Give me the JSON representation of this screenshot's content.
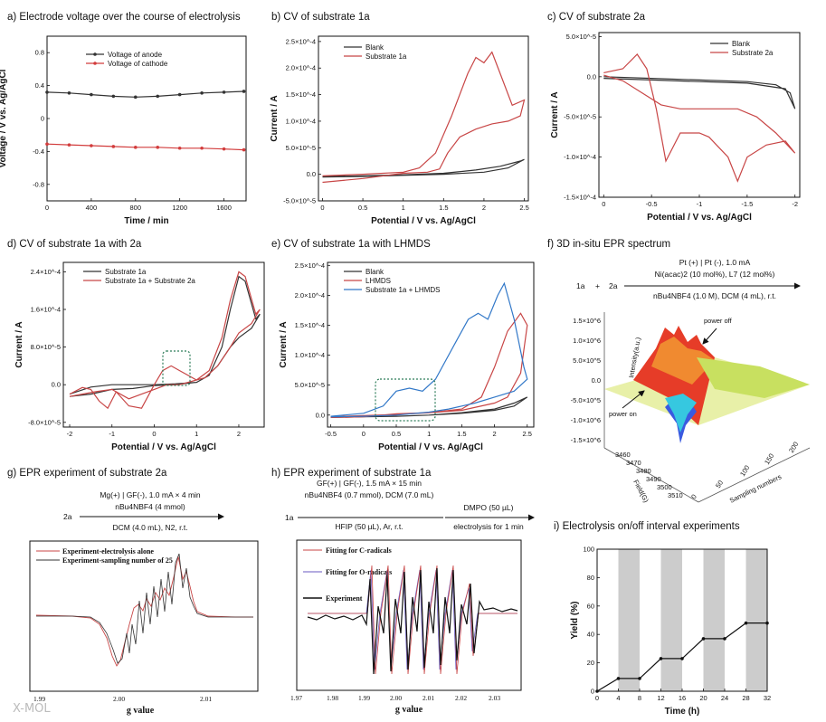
{
  "watermark": "X-MOL",
  "panels": {
    "a": {
      "title": "a) Electrode voltage over the course of electrolysis"
    },
    "b": {
      "title": "b) CV of substrate 1a"
    },
    "c": {
      "title": "c) CV of substrate 2a"
    },
    "d": {
      "title": "d) CV of substrate 1a with 2a"
    },
    "e": {
      "title": "e) CV of substrate 1a with LHMDS"
    },
    "f": {
      "title": "f) 3D in-situ EPR spectrum",
      "reactant1": "1a",
      "plus": "+",
      "reactant2": "2a",
      "cond1": "Pt (+) | Pt (-), 1.0 mA",
      "cond2": "Ni(acac)2 (10 mol%), L7 (12 mol%)",
      "cond3": "nBu4NBF4 (1.0 M), DCM (4 mL), r.t.",
      "zlabel": "Intensity(a.u.)",
      "ylabel": "Field(G)",
      "xlabel": "Sampling numbers",
      "power_off": "power off",
      "power_on": "power on",
      "zticks": [
        "1.5×10^6",
        "1.0×10^6",
        "5.0×10^5",
        "0.0",
        "-5.0×10^5",
        "-1.0×10^6",
        "-1.5×10^6"
      ],
      "fieldticks": [
        "3460",
        "3470",
        "3480",
        "3490",
        "3500",
        "3510"
      ],
      "sampleticks": [
        "0",
        "50",
        "100",
        "150",
        "200"
      ]
    },
    "g": {
      "title": "g) EPR experiment of substrate 2a",
      "reactant": "2a",
      "cond1": "Mg(+) | GF(-), 1.0 mA × 4 min",
      "cond2": "nBu4NBF4 (4 mmol)",
      "cond3": "DCM (4.0 mL), N2, r.t.",
      "legend": [
        "Experiment-electrolysis alone",
        "Experiment-sampling number of 25"
      ],
      "xlabel": "g value",
      "xticks": [
        "1.99",
        "2.00",
        "2.01"
      ]
    },
    "h": {
      "title": "h) EPR experiment of substrate 1a",
      "reactant": "1a",
      "cond1": "GF(+) | GF(-), 1.5 mA × 15 min",
      "cond2": "nBu4NBF4 (0.7 mmol), DCM (7.0 mL)",
      "cond3": "HFIP (50 µL), Ar, r.t.",
      "cond4": "DMPO (50 µL)",
      "cond5": "electrolysis for 1 min",
      "legend": [
        "Fitting for C-radicals",
        "Fitting for O-radicals",
        "Experiment"
      ],
      "xlabel": "g value",
      "xticks": [
        "1.97",
        "1.98",
        "1.99",
        "2.00",
        "2.01",
        "2.02",
        "2.03"
      ]
    },
    "i": {
      "title": "i) Electrolysis on/off interval experiments"
    }
  },
  "chart_data": [
    {
      "panel": "a",
      "type": "line",
      "title": "Electrode voltage over the course of electrolysis",
      "xlabel": "Time / min",
      "ylabel": "Voltage / V vs. Ag/AgCl",
      "xlim": [
        0,
        1800
      ],
      "ylim": [
        -1.0,
        1.0
      ],
      "xticks": [
        0,
        400,
        800,
        1200,
        1600
      ],
      "yticks": [
        -0.8,
        -0.4,
        0.0,
        0.4,
        0.8
      ],
      "series": [
        {
          "name": "Voltage of anode",
          "color": "#333333",
          "x": [
            0,
            200,
            400,
            600,
            800,
            1000,
            1200,
            1400,
            1600,
            1780
          ],
          "y": [
            0.32,
            0.31,
            0.29,
            0.27,
            0.26,
            0.27,
            0.29,
            0.31,
            0.32,
            0.33
          ]
        },
        {
          "name": "Voltage of cathode",
          "color": "#d23c3c",
          "x": [
            0,
            200,
            400,
            600,
            800,
            1000,
            1200,
            1400,
            1600,
            1780
          ],
          "y": [
            -0.31,
            -0.32,
            -0.33,
            -0.34,
            -0.35,
            -0.35,
            -0.36,
            -0.36,
            -0.37,
            -0.38
          ]
        }
      ]
    },
    {
      "panel": "b",
      "type": "line",
      "title": "CV of substrate 1a",
      "xlabel": "Potential / V vs. Ag/AgCl",
      "ylabel": "Current / A",
      "xlim": [
        -0.05,
        2.55
      ],
      "ylim": [
        -5e-05,
        0.00026
      ],
      "xticks": [
        0.0,
        0.5,
        1.0,
        1.5,
        2.0,
        2.5
      ],
      "yticks": [
        -5e-05,
        0.0,
        5e-05,
        0.0001,
        0.00015,
        0.0002,
        0.00025
      ],
      "yticklabels": [
        "-5.0×10^-5",
        "0.0",
        "5.0×10^-5",
        "1.0×10^-4",
        "1.5×10^-4",
        "2.0×10^-4",
        "2.5×10^-4"
      ],
      "series": [
        {
          "name": "Blank",
          "color": "#333333",
          "x": [
            0,
            0.5,
            1.0,
            1.5,
            1.9,
            2.2,
            2.45,
            2.5,
            2.3,
            2.0,
            1.5,
            1.0,
            0.5,
            0
          ],
          "y": [
            -4e-06,
            -3e-06,
            -1e-06,
            2e-06,
            8e-06,
            1.5e-05,
            2.5e-05,
            2.8e-05,
            1.2e-05,
            4e-06,
            0.0,
            -2e-06,
            -4e-06,
            -5e-06
          ]
        },
        {
          "name": "Substrate 1a",
          "color": "#c84646",
          "x": [
            0,
            0.5,
            1.0,
            1.2,
            1.4,
            1.6,
            1.8,
            1.9,
            2.0,
            2.1,
            2.2,
            2.35,
            2.5,
            2.45,
            2.3,
            2.1,
            1.9,
            1.7,
            1.55,
            1.45,
            1.3,
            1.0,
            0.5,
            0
          ],
          "y": [
            -3e-06,
            0.0,
            4e-06,
            1.2e-05,
            4e-05,
            0.00011,
            0.00019,
            0.00022,
            0.00021,
            0.00023,
            0.00019,
            0.00013,
            0.00014,
            0.00011,
            0.0001,
            9.5e-05,
            8.5e-05,
            7e-05,
            4e-05,
            1e-05,
            4e-06,
            2e-06,
            -8e-06,
            -1.5e-05
          ]
        }
      ]
    },
    {
      "panel": "c",
      "type": "line",
      "title": "CV of substrate 2a",
      "xlabel": "Potential / V vs. Ag/AgCl",
      "ylabel": "Current / A",
      "xlim": [
        0.05,
        -2.05
      ],
      "ylim": [
        -0.00015,
        5.5e-05
      ],
      "xticks": [
        0.0,
        -0.5,
        -1.0,
        -1.5,
        -2.0
      ],
      "yticks": [
        -0.00015,
        -0.0001,
        -5e-05,
        0.0,
        5e-05
      ],
      "yticklabels": [
        "-1.5×10^-4",
        "-1.0×10^-4",
        "-5.0×10^-5",
        "0.0",
        "5.0×10^-5"
      ],
      "series": [
        {
          "name": "Blank",
          "color": "#333333",
          "x": [
            0,
            -0.5,
            -1.0,
            -1.5,
            -1.8,
            -1.95,
            -2.0,
            -1.9,
            -1.5,
            -1.0,
            -0.5,
            0
          ],
          "y": [
            0.0,
            -2e-06,
            -4e-06,
            -6e-06,
            -1e-05,
            -2e-05,
            -4e-05,
            -1.5e-05,
            -8e-06,
            -6e-06,
            -4e-06,
            -2e-06
          ]
        },
        {
          "name": "Substrate 2a",
          "color": "#c84646",
          "x": [
            0,
            -0.2,
            -0.35,
            -0.45,
            -0.55,
            -0.65,
            -0.8,
            -1.0,
            -1.1,
            -1.3,
            -1.4,
            -1.5,
            -1.7,
            -1.9,
            -2.0,
            -1.8,
            -1.6,
            -1.4,
            -1.2,
            -1.0,
            -0.8,
            -0.6,
            -0.4,
            -0.2,
            0
          ],
          "y": [
            5e-06,
            1e-05,
            2.8e-05,
            1e-05,
            -4e-05,
            -0.000105,
            -7e-05,
            -7e-05,
            -7.5e-05,
            -0.0001,
            -0.00013,
            -0.0001,
            -8.5e-05,
            -8e-05,
            -9.5e-05,
            -7e-05,
            -5e-05,
            -4e-05,
            -4e-05,
            -4e-05,
            -4e-05,
            -3.5e-05,
            -2e-05,
            -5e-06,
            2e-06
          ]
        }
      ]
    },
    {
      "panel": "d",
      "type": "line",
      "title": "CV of substrate 1a with 2a",
      "xlabel": "Potential / V vs. Ag/AgCl",
      "ylabel": "Current / A",
      "xlim": [
        -2.15,
        2.6
      ],
      "ylim": [
        -9e-05,
        0.00026
      ],
      "xticks": [
        -2,
        -1,
        0,
        1,
        2
      ],
      "yticks": [
        -8e-05,
        0.0,
        8e-05,
        0.00016,
        0.00024
      ],
      "yticklabels": [
        "-8.0×10^-5",
        "0.0",
        "8.0×10^-5",
        "1.6×10^-4",
        "2.4×10^-4"
      ],
      "series": [
        {
          "name": "Substrate 1a",
          "color": "#333333",
          "x": [
            -2.0,
            -1.5,
            -1.0,
            -0.5,
            0,
            0.5,
            1.0,
            1.3,
            1.6,
            1.8,
            2.0,
            2.15,
            2.4,
            2.5,
            2.3,
            2.0,
            1.8,
            1.5,
            1.2,
            1.0,
            0.5,
            0,
            -0.5,
            -1.0,
            -1.5,
            -2.0
          ],
          "y": [
            -2e-05,
            -5e-06,
            0.0,
            0.0,
            0.0,
            2e-06,
            5e-06,
            2e-05,
            8e-05,
            0.00016,
            0.00023,
            0.00022,
            0.00014,
            0.00015,
            0.00012,
            0.0001,
            8e-05,
            4e-05,
            1.5e-05,
            5e-06,
            0.0,
            -2e-06,
            -8e-06,
            -1e-05,
            -2e-05,
            -2.5e-05
          ]
        },
        {
          "name": "Substrate 1a + Substrate 2a",
          "color": "#c84646",
          "x": [
            -2.0,
            -1.7,
            -1.5,
            -1.3,
            -1.1,
            -0.9,
            -0.6,
            -0.3,
            0,
            0.2,
            0.4,
            0.6,
            1.0,
            1.3,
            1.6,
            1.8,
            2.0,
            2.15,
            2.4,
            2.5,
            2.3,
            2.0,
            1.8,
            1.5,
            1.2,
            1.0,
            0.6,
            0.3,
            0,
            -0.3,
            -0.6,
            -1.0,
            -1.4,
            -1.7,
            -2.0
          ],
          "y": [
            -2e-05,
            -6e-06,
            -1e-05,
            -3.5e-05,
            -5e-05,
            -1.5e-05,
            -4.5e-05,
            -5e-05,
            0.0,
            3e-05,
            4e-05,
            3e-05,
            1e-05,
            3e-05,
            0.0001,
            0.00018,
            0.00024,
            0.00023,
            0.00015,
            0.00016,
            0.00013,
            0.00011,
            8e-05,
            4e-05,
            1.5e-05,
            1e-05,
            0.0,
            0.0,
            -1e-05,
            -2e-05,
            -3e-05,
            -1e-05,
            -1.5e-05,
            -2e-05,
            -2.5e-05
          ]
        }
      ]
    },
    {
      "panel": "e",
      "type": "line",
      "title": "CV of substrate 1a with LHMDS",
      "xlabel": "Potential / V vs. Ag/AgCl",
      "ylabel": "Current / A",
      "xlim": [
        -0.55,
        2.6
      ],
      "ylim": [
        -2e-05,
        0.000255
      ],
      "xticks": [
        -0.5,
        0.0,
        0.5,
        1.0,
        1.5,
        2.0,
        2.5
      ],
      "yticks": [
        0.0,
        5e-05,
        0.0001,
        0.00015,
        0.0002,
        0.00025
      ],
      "yticklabels": [
        "0.0",
        "5.0×10^-5",
        "1.0×10^-4",
        "1.5×10^-4",
        "2.0×10^-4",
        "2.5×10^-4"
      ],
      "series": [
        {
          "name": "Blank",
          "color": "#333333",
          "x": [
            -0.5,
            0,
            0.5,
            1.0,
            1.5,
            2.0,
            2.3,
            2.5,
            2.3,
            2.0,
            1.5,
            1.0,
            0.5,
            0,
            -0.5
          ],
          "y": [
            -4e-06,
            -3e-06,
            -2e-06,
            0.0,
            4e-06,
            1e-05,
            2e-05,
            3e-05,
            1.5e-05,
            8e-06,
            3e-06,
            0.0,
            -2e-06,
            -3e-06,
            -4e-06
          ]
        },
        {
          "name": "LHMDS",
          "color": "#c84646",
          "x": [
            -0.5,
            0,
            0.5,
            1.0,
            1.5,
            1.8,
            2.0,
            2.2,
            2.4,
            2.5,
            2.4,
            2.2,
            2.0,
            1.5,
            1.0,
            0.5,
            0,
            -0.5
          ],
          "y": [
            -3e-06,
            -1e-06,
            1e-06,
            4e-06,
            1e-05,
            3e-05,
            8e-05,
            0.00014,
            0.00017,
            0.00015,
            7e-05,
            3e-05,
            2e-05,
            8e-06,
            4e-06,
            2e-06,
            -3e-06,
            -4e-06
          ]
        },
        {
          "name": "Substrate 1a + LHMDS",
          "color": "#3278c8",
          "x": [
            -0.5,
            0,
            0.3,
            0.5,
            0.7,
            0.9,
            1.1,
            1.4,
            1.6,
            1.75,
            1.9,
            2.05,
            2.15,
            2.3,
            2.45,
            2.5,
            2.3,
            2.0,
            1.7,
            1.5,
            1.3,
            1.0,
            0.5,
            0,
            -0.5
          ],
          "y": [
            -2e-06,
            3e-06,
            1.5e-05,
            4e-05,
            4.5e-05,
            4e-05,
            6e-05,
            0.00012,
            0.00016,
            0.00017,
            0.00016,
            0.0002,
            0.00022,
            0.00016,
            8e-05,
            6e-05,
            4e-05,
            3e-05,
            2e-05,
            1.5e-05,
            1e-05,
            5e-06,
            0.0,
            -2e-06,
            -3e-06
          ]
        }
      ]
    },
    {
      "panel": "i",
      "type": "line",
      "title": "Electrolysis on/off interval experiments",
      "xlabel": "Time (h)",
      "ylabel": "Yield (%)",
      "xlim": [
        0,
        32
      ],
      "ylim": [
        0,
        100
      ],
      "xticks": [
        0,
        4,
        8,
        12,
        16,
        20,
        24,
        28,
        32
      ],
      "yticks": [
        0,
        20,
        40,
        60,
        80,
        100
      ],
      "shaded_intervals": [
        [
          4,
          8
        ],
        [
          12,
          16
        ],
        [
          20,
          24
        ],
        [
          28,
          32
        ]
      ],
      "series": [
        {
          "name": "Yield",
          "color": "#111111",
          "x": [
            0,
            4,
            8,
            12,
            16,
            20,
            24,
            28,
            32
          ],
          "y": [
            0,
            9,
            9,
            23,
            23,
            37,
            37,
            48,
            48
          ]
        }
      ]
    }
  ]
}
